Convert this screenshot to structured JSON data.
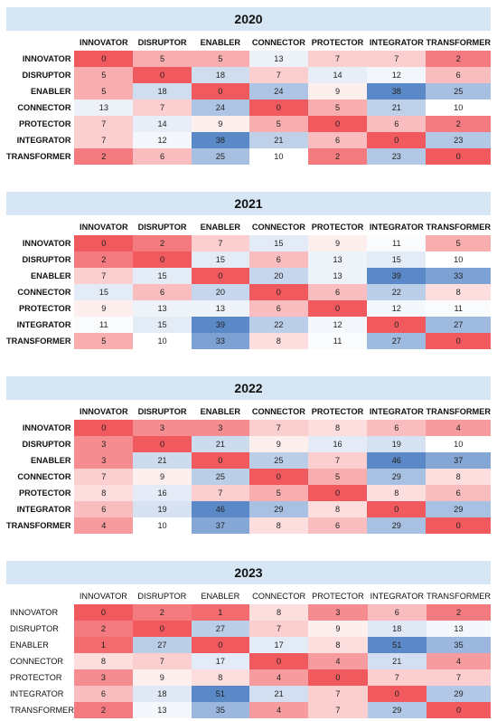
{
  "roles": [
    "INNOVATOR",
    "DISRUPTOR",
    "ENABLER",
    "CONNECTOR",
    "PROTECTOR",
    "INTEGRATOR",
    "TRANSFORMER"
  ],
  "colors": {
    "low": "#f05a5f",
    "mid": "#ffffff",
    "high": "#5b89c8",
    "year_bar": "#d6e6f4"
  },
  "chart_data": [
    {
      "type": "heatmap",
      "title": "2020",
      "x": [
        "INNOVATOR",
        "DISRUPTOR",
        "ENABLER",
        "CONNECTOR",
        "PROTECTOR",
        "INTEGRATOR",
        "TRANSFORMER"
      ],
      "y": [
        "INNOVATOR",
        "DISRUPTOR",
        "ENABLER",
        "CONNECTOR",
        "PROTECTOR",
        "INTEGRATOR",
        "TRANSFORMER"
      ],
      "values": [
        [
          0,
          5,
          5,
          13,
          7,
          7,
          2
        ],
        [
          5,
          0,
          18,
          7,
          14,
          12,
          6
        ],
        [
          5,
          18,
          0,
          24,
          9,
          38,
          25
        ],
        [
          13,
          7,
          24,
          0,
          5,
          21,
          10
        ],
        [
          7,
          14,
          9,
          5,
          0,
          6,
          2
        ],
        [
          7,
          12,
          38,
          21,
          6,
          0,
          23
        ],
        [
          2,
          6,
          25,
          10,
          2,
          23,
          0
        ]
      ],
      "value_range": [
        0,
        38
      ]
    },
    {
      "type": "heatmap",
      "title": "2021",
      "x": [
        "INNOVATOR",
        "DISRUPTOR",
        "ENABLER",
        "CONNECTOR",
        "PROTECTOR",
        "INTEGRATOR",
        "TRANSFORMER"
      ],
      "y": [
        "INNOVATOR",
        "DISRUPTOR",
        "ENABLER",
        "CONNECTOR",
        "PROTECTOR",
        "INTEGRATOR",
        "TRANSFORMER"
      ],
      "values": [
        [
          0,
          2,
          7,
          15,
          9,
          11,
          5
        ],
        [
          2,
          0,
          15,
          6,
          13,
          15,
          10
        ],
        [
          7,
          15,
          0,
          20,
          13,
          39,
          33
        ],
        [
          15,
          6,
          20,
          0,
          6,
          22,
          8
        ],
        [
          9,
          13,
          13,
          6,
          0,
          12,
          11
        ],
        [
          11,
          15,
          39,
          22,
          12,
          0,
          27
        ],
        [
          5,
          10,
          33,
          8,
          11,
          27,
          0
        ]
      ],
      "value_range": [
        0,
        39
      ]
    },
    {
      "type": "heatmap",
      "title": "2022",
      "x": [
        "INNOVATOR",
        "DISRUPTOR",
        "ENABLER",
        "CONNECTOR",
        "PROTECTOR",
        "INTEGRATOR",
        "TRANSFORMER"
      ],
      "y": [
        "INNOVATOR",
        "DISRUPTOR",
        "ENABLER",
        "CONNECTOR",
        "PROTECTOR",
        "INTEGRATOR",
        "TRANSFORMER"
      ],
      "values": [
        [
          0,
          3,
          3,
          7,
          8,
          6,
          4
        ],
        [
          3,
          0,
          21,
          9,
          16,
          19,
          10
        ],
        [
          3,
          21,
          0,
          25,
          7,
          46,
          37
        ],
        [
          7,
          9,
          25,
          0,
          5,
          29,
          8
        ],
        [
          8,
          16,
          7,
          5,
          0,
          8,
          6
        ],
        [
          6,
          19,
          46,
          29,
          8,
          0,
          29
        ],
        [
          4,
          10,
          37,
          8,
          6,
          29,
          0
        ]
      ],
      "value_range": [
        0,
        46
      ]
    },
    {
      "type": "heatmap",
      "title": "2023",
      "x": [
        "INNOVATOR",
        "DISRUPTOR",
        "ENABLER",
        "CONNECTOR",
        "PROTECTOR",
        "INTEGRATOR",
        "TRANSFORMER"
      ],
      "y": [
        "INNOVATOR",
        "DISRUPTOR",
        "ENABLER",
        "CONNECTOR",
        "PROTECTOR",
        "INTEGRATOR",
        "TRANSFORMER"
      ],
      "values": [
        [
          0,
          2,
          1,
          8,
          3,
          6,
          2
        ],
        [
          2,
          0,
          27,
          7,
          9,
          18,
          13
        ],
        [
          1,
          27,
          0,
          17,
          8,
          51,
          35
        ],
        [
          8,
          7,
          17,
          0,
          4,
          21,
          4
        ],
        [
          3,
          9,
          8,
          4,
          0,
          7,
          7
        ],
        [
          6,
          18,
          51,
          21,
          7,
          0,
          29
        ],
        [
          2,
          13,
          35,
          4,
          7,
          29,
          0
        ]
      ],
      "value_range": [
        0,
        51
      ]
    }
  ]
}
